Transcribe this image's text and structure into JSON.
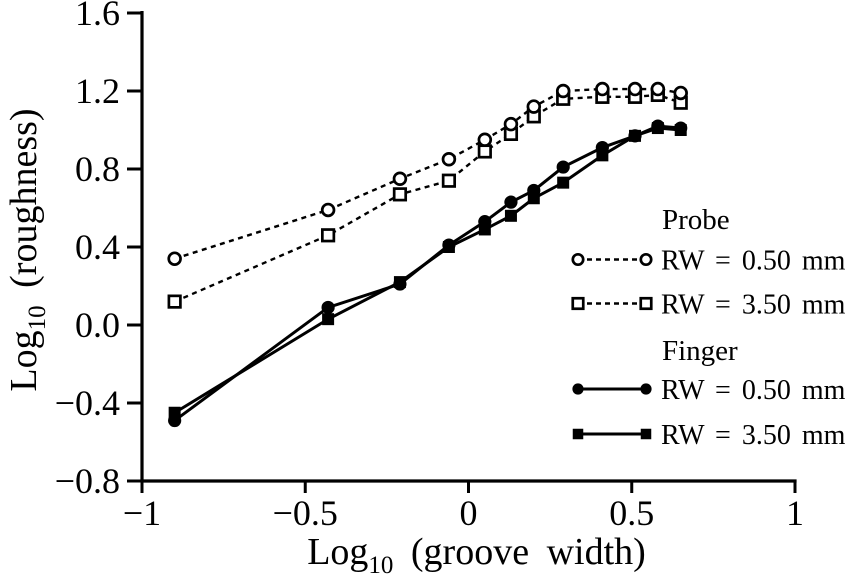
{
  "figure": {
    "background": "#ffffff",
    "ink_color": "#000000",
    "description": "Scanned journal line chart comparing perceived roughness via probe vs finger"
  },
  "chart_data": {
    "type": "line",
    "title": "",
    "xlabel": "Log10 (groove width)",
    "ylabel": "Log10 (roughness)",
    "xlabel_parts": {
      "prefix": "Log",
      "sub": "10",
      "rest": " (groove width)"
    },
    "ylabel_parts": {
      "prefix": "Log",
      "sub": "10",
      "rest": " (roughness)"
    },
    "xlim": [
      -1,
      1
    ],
    "ylim": [
      -0.8,
      1.6
    ],
    "grid": false,
    "x_ticks": [
      -1,
      -0.5,
      0,
      0.5,
      1
    ],
    "x_tick_labels": [
      "−1",
      "−0.5",
      "0",
      "0.5",
      "1"
    ],
    "y_ticks": [
      1.6,
      1.2,
      0.8,
      0.4,
      0.0,
      -0.4,
      -0.8
    ],
    "y_tick_labels": [
      "1.6",
      "1.2",
      "0.8",
      "0.4",
      "0.0",
      "−0.4",
      "−0.8"
    ],
    "x": [
      -0.9,
      -0.43,
      -0.21,
      -0.06,
      0.05,
      0.13,
      0.2,
      0.29,
      0.41,
      0.51,
      0.58,
      0.65
    ],
    "series": [
      {
        "name": "Probe RW = 0.50 mm",
        "group": "Probe",
        "label": "RW = 0.50 mm",
        "marker": "open-circle",
        "line": "dashed",
        "values": [
          0.34,
          0.59,
          0.75,
          0.85,
          0.95,
          1.03,
          1.12,
          1.2,
          1.21,
          1.21,
          1.21,
          1.19
        ]
      },
      {
        "name": "Probe RW = 3.50 mm",
        "group": "Probe",
        "label": "RW = 3.50 mm",
        "marker": "open-square",
        "line": "dashed",
        "values": [
          0.12,
          0.46,
          0.67,
          0.74,
          0.89,
          0.98,
          1.07,
          1.16,
          1.17,
          1.17,
          1.18,
          1.14
        ]
      },
      {
        "name": "Finger RW = 0.50 mm",
        "group": "Finger",
        "label": "RW = 0.50 mm",
        "marker": "filled-circle",
        "line": "solid",
        "values": [
          -0.49,
          0.09,
          0.21,
          0.41,
          0.53,
          0.63,
          0.69,
          0.81,
          0.91,
          0.97,
          1.02,
          1.01
        ]
      },
      {
        "name": "Finger RW = 3.50 mm",
        "group": "Finger",
        "label": "RW = 3.50 mm",
        "marker": "filled-square",
        "line": "solid",
        "values": [
          -0.45,
          0.03,
          0.22,
          0.4,
          0.49,
          0.56,
          0.65,
          0.73,
          0.87,
          0.97,
          1.01,
          1.0
        ]
      }
    ],
    "legend": {
      "position": "right-middle",
      "groups": [
        {
          "header": "Probe",
          "entries": [
            0,
            1
          ]
        },
        {
          "header": "Finger",
          "entries": [
            2,
            3
          ]
        }
      ]
    }
  }
}
